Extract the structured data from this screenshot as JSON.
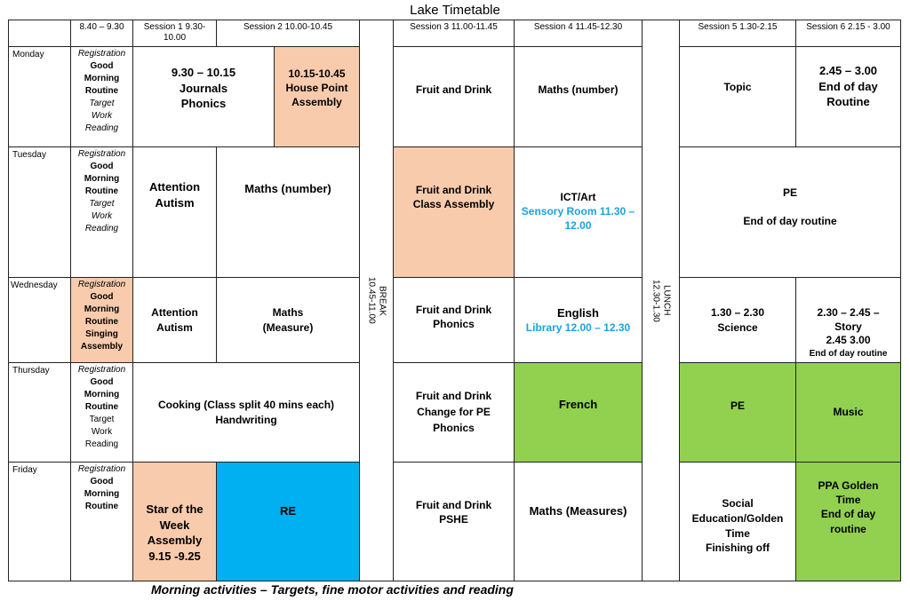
{
  "title": "Lake Timetable",
  "headers": {
    "morning": "8.40 – 9.30",
    "s1": "Session 1 9.30-10.00",
    "s2": "Session 2 10.00-10.45",
    "s3": "Session 3 11.00-11.45",
    "s4": "Session 4 11.45-12.30",
    "s5": "Session 5 1.30-2.15",
    "s6": "Session 6 2.15 - 3.00"
  },
  "break": {
    "label": "BREAK",
    "time": "10.45-11.00"
  },
  "lunch": {
    "label": "LUNCH",
    "time": "12.30-1.30"
  },
  "days": {
    "mon": "Monday",
    "tue": "Tuesday",
    "wed": "Wednesday",
    "thu": "Thursday",
    "fri": "Friday"
  },
  "cells": {
    "mon_reg": [
      "Registration",
      "Good",
      "Morning",
      "Routine",
      "Target",
      "Work",
      "Reading"
    ],
    "mon_s1": [
      "9.30 – 10.15",
      "Journals",
      "Phonics"
    ],
    "mon_s2": [
      "10.15-10.45",
      "House Point",
      "Assembly"
    ],
    "mon_s3": "Fruit and Drink",
    "mon_s4": "Maths (number)",
    "mon_s5": "Topic",
    "mon_s6": [
      "2.45 – 3.00",
      "End of day",
      "Routine"
    ],
    "tue_reg": [
      "Registration",
      "Good",
      "Morning",
      "Routine",
      "Target",
      "Work",
      "Reading"
    ],
    "tue_s1": [
      "Attention",
      "Autism"
    ],
    "tue_s2": "Maths (number)",
    "tue_s3": [
      "Fruit and Drink",
      "Class Assembly"
    ],
    "tue_s4": [
      "ICT/Art",
      "Sensory Room 11.30 –",
      "12.00"
    ],
    "tue_s56": [
      "PE",
      "End of day routine"
    ],
    "wed_reg": [
      "Registration",
      "Good",
      "Morning",
      "Routine",
      "Singing",
      "Assembly"
    ],
    "wed_s1": [
      "Attention",
      "Autism"
    ],
    "wed_s2": [
      "Maths",
      "(Measure)"
    ],
    "wed_s3": [
      "Fruit and Drink",
      "Phonics"
    ],
    "wed_s4": [
      "English",
      "Library 12.00 – 12.30"
    ],
    "wed_s5": [
      "1.30 – 2.30",
      "Science"
    ],
    "wed_s6": [
      "2.30 – 2.45 –",
      "Story",
      "2.45 3.00",
      "End of day routine"
    ],
    "thu_reg": [
      "Registration",
      "Good",
      "Morning",
      "Routine",
      "Target",
      "Work",
      "Reading"
    ],
    "thu_s12": [
      "Cooking (Class split 40 mins each)",
      "Handwriting"
    ],
    "thu_s3": [
      "Fruit and Drink",
      "Change for PE",
      "Phonics"
    ],
    "thu_s4": "French",
    "thu_s5": "PE",
    "thu_s6": "Music",
    "fri_reg": [
      "Registration",
      "Good",
      "Morning",
      "Routine"
    ],
    "fri_s1": [
      "Star of the",
      "Week",
      "Assembly",
      "9.15 -9.25"
    ],
    "fri_s2": "RE",
    "fri_s3": [
      "Fruit and Drink",
      "PSHE"
    ],
    "fri_s4": "Maths (Measures)",
    "fri_s5": [
      "Social",
      "Education/Golden",
      "Time",
      "Finishing off"
    ],
    "fri_s6": [
      "PPA Golden",
      "Time",
      "End of day",
      "routine"
    ]
  },
  "footer": "Morning activities – Targets, fine motor activities and reading",
  "colors": {
    "peach": "#f8cbad",
    "green": "#92d050",
    "cyan": "#00b0f0",
    "blue_text": "#1ba1e2"
  }
}
